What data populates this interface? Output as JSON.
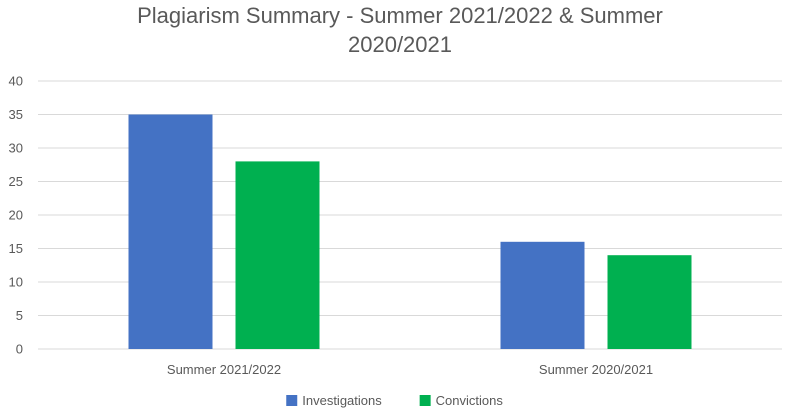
{
  "chart_data": {
    "type": "bar",
    "title_lines": [
      "Plagiarism Summary - Summer 2021/2022 & Summer",
      "2020/2021"
    ],
    "categories": [
      "Summer 2021/2022",
      "Summer 2020/2021"
    ],
    "series": [
      {
        "name": "Investigations",
        "color": "#4472C4",
        "values": [
          35,
          16
        ]
      },
      {
        "name": "Convictions",
        "color": "#00B050",
        "values": [
          28,
          14
        ]
      }
    ],
    "ylim": [
      0,
      40
    ],
    "yticks": [
      0,
      5,
      10,
      15,
      20,
      25,
      30,
      35,
      40
    ],
    "grid": true,
    "legend_position": "bottom"
  }
}
